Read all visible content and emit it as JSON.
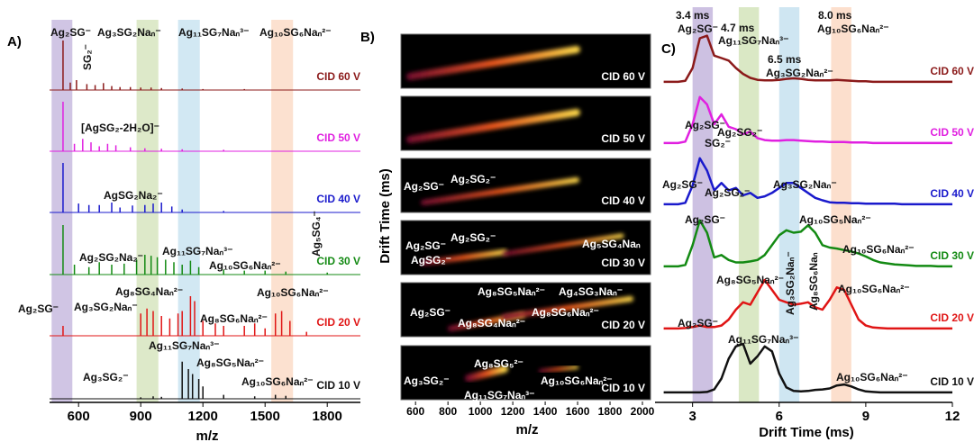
{
  "chart_data": [
    {
      "type": "spectrum",
      "panel_label": "A)",
      "xlabel": "m/z",
      "xlim": [
        460,
        1960
      ],
      "xticks": [
        600,
        900,
        1200,
        1500,
        1800
      ],
      "bands": [
        {
          "x": [
            470,
            570
          ],
          "color": "#c4b6dd"
        },
        {
          "x": [
            880,
            985
          ],
          "color": "#d4e4bb"
        },
        {
          "x": [
            1080,
            1185
          ],
          "color": "#c7e2f0"
        },
        {
          "x": [
            1530,
            1635
          ],
          "color": "#fbd9c4"
        }
      ],
      "series": [
        {
          "name": "CID 60 V",
          "color": "#8b1a1a",
          "x": [
            525,
            560,
            590,
            640,
            680,
            720,
            760,
            800,
            850,
            900,
            950,
            1000,
            1100,
            1200,
            1400
          ],
          "values": [
            100,
            15,
            20,
            12,
            10,
            14,
            8,
            6,
            6,
            5,
            5,
            4,
            3,
            2,
            2
          ]
        },
        {
          "name": "CID 50 V",
          "color": "#e020e0",
          "x": [
            525,
            580,
            620,
            660,
            700,
            740,
            780,
            850,
            920,
            1000,
            1100,
            1300
          ],
          "values": [
            100,
            15,
            25,
            18,
            10,
            15,
            12,
            8,
            6,
            5,
            4,
            3
          ]
        },
        {
          "name": "CID 40 V",
          "color": "#1a1acc",
          "x": [
            525,
            600,
            650,
            700,
            760,
            800,
            860,
            920,
            960,
            1000,
            1050,
            1100,
            1300
          ],
          "values": [
            100,
            18,
            15,
            15,
            20,
            10,
            14,
            15,
            18,
            20,
            12,
            6,
            3
          ]
        },
        {
          "name": "CID 30 V",
          "color": "#138a13",
          "x": [
            525,
            580,
            650,
            700,
            760,
            820,
            880,
            920,
            950,
            980,
            1020,
            1060,
            1100,
            1140,
            1180,
            1300,
            1400,
            1500,
            1600,
            1800
          ],
          "values": [
            100,
            20,
            15,
            25,
            20,
            22,
            30,
            40,
            38,
            35,
            30,
            25,
            20,
            28,
            15,
            10,
            8,
            8,
            6,
            4
          ]
        },
        {
          "name": "CID 20 V",
          "color": "#e01515",
          "x": [
            525,
            900,
            930,
            960,
            1000,
            1040,
            1080,
            1100,
            1140,
            1160,
            1200,
            1260,
            1300,
            1400,
            1450,
            1500,
            1550,
            1580,
            1620,
            1700
          ],
          "values": [
            20,
            45,
            55,
            50,
            40,
            35,
            45,
            50,
            80,
            70,
            30,
            25,
            20,
            20,
            25,
            15,
            45,
            50,
            30,
            8
          ]
        },
        {
          "name": "CID 10 V",
          "color": "#111111",
          "x": [
            900,
            960,
            1000,
            1100,
            1130,
            1150,
            1180,
            1200,
            1300,
            1450,
            1550,
            1600
          ],
          "values": [
            3,
            5,
            4,
            75,
            60,
            50,
            40,
            25,
            8,
            5,
            8,
            6
          ]
        }
      ],
      "annotations": [
        "Ag₂SG⁻",
        "Ag₃SG₂Naₙ⁻",
        "Ag₁₁SG₇Naₙ³⁻",
        "Ag₁₀SG₆Naₙ²⁻",
        "SG₂⁻",
        "[AgSG₂-2H₂O]⁻",
        "AgSG₂Na₂⁻",
        "Ag₂SG₂Na₂⁻",
        "Ag₁₁SG₇Naₙ³⁻",
        "Ag₁₀SG₆Naₙ²⁻",
        "Ag₅SG₄⁻",
        "Ag₂SG⁻",
        "Ag₈SG₄Naₙ²⁻",
        "Ag₃SG₂Naₙ⁻",
        "Ag₈SG₆Naₙ²⁻",
        "Ag₁₀SG₆Naₙ²⁻",
        "Ag₁₁SG₇Naₙ³⁻",
        "Ag₈SG₅Naₙ²⁻",
        "Ag₃SG₂⁻",
        "Ag₁₀SG₆Naₙ²⁻"
      ]
    },
    {
      "type": "heatmap",
      "panel_label": "B)",
      "xlabel": "m/z",
      "ylabel": "Drift Time (ms)",
      "xlim": [
        510,
        2050
      ],
      "xticks": [
        600,
        800,
        1000,
        1200,
        1400,
        1600,
        1800,
        2000
      ],
      "panels": [
        "CID 60 V",
        "CID 50 V",
        "CID 40 V",
        "CID 30 V",
        "CID 20 V",
        "CID 10 V"
      ],
      "annotations": [
        "Ag₂SG⁻",
        "Ag₂SG₂⁻",
        "Ag₂SG⁻",
        "Ag₂SG₂⁻",
        "AgSG₂⁻",
        "Ag₅SG₄Naₙ",
        "Ag₂SG⁻",
        "Ag₈SG₅Naₙ²⁻",
        "Ag₄SG₃Naₙ⁻",
        "Ag₈SG₄Naₙ²⁻",
        "Ag₈SG₆Naₙ²⁻",
        "Ag₃SG₂⁻",
        "Ag₈SG₅²⁻",
        "Ag₁₁SG₇Naₙ³⁻",
        "Ag₁₀SG₆Naₙ²⁻"
      ]
    },
    {
      "type": "line",
      "panel_label": "C)",
      "xlabel": "Drift Time (ms)",
      "xlim": [
        1.7,
        12
      ],
      "xticks": [
        3,
        6,
        9,
        12
      ],
      "bands": [
        {
          "x": [
            3.0,
            3.7
          ],
          "color": "#c4b6dd"
        },
        {
          "x": [
            4.6,
            5.3
          ],
          "color": "#d4e4bb"
        },
        {
          "x": [
            6.0,
            6.7
          ],
          "color": "#c7e2f0"
        },
        {
          "x": [
            7.8,
            8.5
          ],
          "color": "#fbd9c4"
        }
      ],
      "x": [
        2,
        2.25,
        2.5,
        2.75,
        3,
        3.25,
        3.5,
        3.75,
        4,
        4.25,
        4.5,
        4.75,
        5,
        5.25,
        5.5,
        5.75,
        6,
        6.25,
        6.5,
        6.75,
        7,
        7.25,
        7.5,
        7.75,
        8,
        8.25,
        8.5,
        8.75,
        9,
        9.25,
        9.5,
        9.75,
        10,
        10.25,
        10.5,
        10.75,
        11,
        11.25,
        11.5,
        11.75,
        12
      ],
      "series": [
        {
          "name": "CID 60 V",
          "color": "#8b1a1a",
          "values": [
            2,
            2,
            2,
            4,
            30,
            90,
            95,
            55,
            50,
            45,
            30,
            18,
            10,
            6,
            5,
            5,
            6,
            8,
            9,
            8,
            6,
            5,
            5,
            5,
            6,
            5,
            4,
            3,
            3,
            2,
            2,
            2,
            2,
            2,
            2,
            2,
            2,
            2,
            2,
            2,
            2
          ]
        },
        {
          "name": "CID 50 V",
          "color": "#e020e0",
          "values": [
            2,
            2,
            2,
            5,
            40,
            95,
            80,
            40,
            60,
            35,
            30,
            20,
            25,
            12,
            8,
            7,
            7,
            8,
            8,
            7,
            6,
            5,
            5,
            4,
            4,
            4,
            3,
            3,
            3,
            2,
            2,
            2,
            2,
            2,
            2,
            2,
            2,
            2,
            2,
            2,
            2
          ]
        },
        {
          "name": "CID 40 V",
          "color": "#1a1acc",
          "values": [
            2,
            2,
            2,
            5,
            40,
            95,
            70,
            30,
            45,
            30,
            35,
            20,
            25,
            15,
            18,
            25,
            35,
            45,
            45,
            35,
            25,
            15,
            10,
            6,
            5,
            5,
            4,
            4,
            3,
            3,
            3,
            3,
            3,
            2,
            2,
            2,
            2,
            2,
            2,
            2,
            2
          ]
        },
        {
          "name": "CID 30 V",
          "color": "#138a13",
          "values": [
            2,
            2,
            2,
            5,
            45,
            95,
            70,
            20,
            25,
            15,
            10,
            10,
            12,
            15,
            25,
            45,
            65,
            75,
            70,
            72,
            85,
            70,
            45,
            40,
            38,
            35,
            32,
            28,
            22,
            15,
            10,
            8,
            6,
            5,
            4,
            3,
            3,
            3,
            2,
            2,
            2
          ]
        },
        {
          "name": "CID 20 V",
          "color": "#e01515",
          "values": [
            2,
            2,
            2,
            3,
            5,
            8,
            5,
            5,
            8,
            20,
            40,
            55,
            50,
            75,
            100,
            80,
            60,
            55,
            50,
            52,
            55,
            45,
            40,
            60,
            85,
            80,
            50,
            20,
            8,
            4,
            3,
            2,
            2,
            2,
            2,
            2,
            2,
            2,
            2,
            2,
            2
          ]
        },
        {
          "name": "CID 10 V",
          "color": "#111111",
          "values": [
            2,
            2,
            2,
            2,
            2,
            2,
            3,
            8,
            30,
            70,
            95,
            100,
            60,
            75,
            95,
            85,
            40,
            12,
            5,
            4,
            5,
            7,
            8,
            10,
            16,
            18,
            14,
            8,
            4,
            3,
            2,
            2,
            2,
            2,
            2,
            2,
            2,
            2,
            2,
            2,
            2
          ]
        }
      ],
      "annotations": [
        "3.4 ms",
        "Ag₂SG⁻",
        "4.7 ms",
        "Ag₁₁SG₇Naₙ³⁻",
        "8.0 ms",
        "Ag₁₀SG₆Naₙ²⁻",
        "6.5 ms",
        "Ag₃SG₂Naₙ²⁻",
        "Ag₂SG⁻",
        "SG₂⁻",
        "Ag₂SG₂⁻",
        "Ag₂SG⁻",
        "Ag₂SG₂⁻",
        "Ag₃SG₂Naₙ⁻",
        "Ag₂SG⁻",
        "Ag₁₀SG₅Naₙ²⁻",
        "Ag₁₀SG₆Naₙ²⁻",
        "Ag₈SG₅Naₙ²⁻",
        "Ag₃SG₂Naₙ⁻",
        "Ag₈SG₆Naₙ",
        "Ag₁₀SG₆Naₙ²⁻",
        "Ag₂SG⁻",
        "Ag₁₁SG₇Naₙ³⁻",
        "Ag₁₀SG₆Naₙ²⁻"
      ]
    }
  ]
}
